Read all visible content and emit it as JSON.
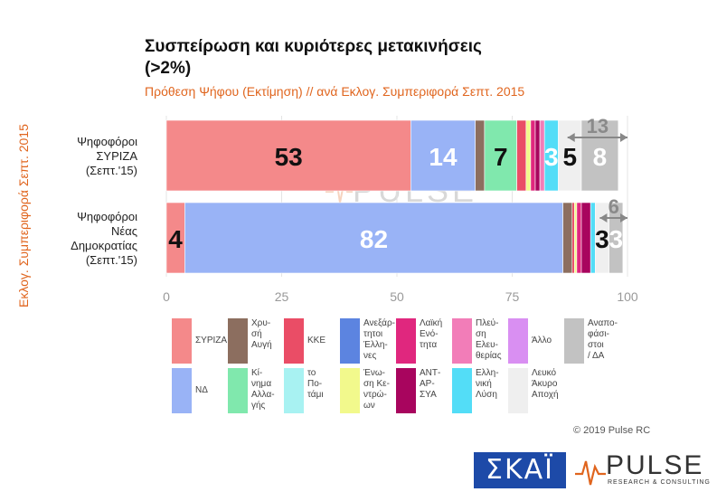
{
  "title": "Συσπείρωση και κυριότερες μετακινήσεις (>2%)",
  "subtitle": "Πρόθεση Ψήφου (Εκτίμηση) // ανά Εκλογ. Συμπεριφορά Σεπτ. 2015",
  "side_label": "Εκλογ. Συμπεριφορά Σεπτ. 2015",
  "copyright": "© 2019 Pulse RC",
  "logos": {
    "skai": "ΣΚΑΪ",
    "pulse": "PULSE",
    "pulse_sub": "RESEARCH & CONSULTING"
  },
  "colors": {
    "ΣΥΡΙΖΑ": "#f4898a",
    "ΝΔ": "#99b3f6",
    "Χρυσή Αυγή": "#8c6e5f",
    "Κίνημα Αλλαγής": "#80e8ad",
    "ΚΚΕ": "#ea4d66",
    "το Ποτάμι": "#a8f2f2",
    "Ανεξάρτητοι Έλληνες": "#5c84e0",
    "Ένωση Κεντρώων": "#f2f98c",
    "Λαϊκή Ενότητα": "#e0277e",
    "ΑΝΤΑΡΣΥΑ": "#a8055e",
    "Πλεύση Ελευθερίας": "#f27db8",
    "Ελληνική Λύση": "#53ddf7",
    "Άλλο": "#d98ff2",
    "Λευκό Άκυρο Αποχή": "#efefef",
    "Αναποφάσιστοι / ΔΑ": "#c2c2c2"
  },
  "chart_data": {
    "type": "bar",
    "orientation": "horizontal",
    "stacked": true,
    "categories": [
      [
        "Ψηφοφόροι",
        "ΣΥΡΙΖΑ",
        "(Σεπτ.'15)"
      ],
      [
        "Ψηφοφόροι",
        "Νέας",
        "Δημοκρατίας",
        "(Σεπτ.'15)"
      ]
    ],
    "xlim": [
      0,
      100
    ],
    "xticks": [
      0,
      25,
      50,
      75,
      100
    ],
    "series": [
      {
        "name": "ΣΥΡΙΖΑ",
        "values": [
          53,
          4
        ]
      },
      {
        "name": "ΝΔ",
        "values": [
          14,
          82
        ]
      },
      {
        "name": "Χρυσή Αυγή",
        "values": [
          2,
          2
        ]
      },
      {
        "name": "Κίνημα Αλλαγής",
        "values": [
          7,
          0
        ]
      },
      {
        "name": "ΚΚΕ",
        "values": [
          2,
          0.5
        ]
      },
      {
        "name": "Ένωση Κεντρώων",
        "values": [
          1,
          0.5
        ]
      },
      {
        "name": "Λαϊκή Ενότητα",
        "values": [
          1,
          1
        ]
      },
      {
        "name": "ΑΝΤΑΡΣΥΑ",
        "values": [
          1,
          2
        ]
      },
      {
        "name": "Πλεύση Ελευθερίας",
        "values": [
          1,
          0
        ]
      },
      {
        "name": "Ελληνική Λύση",
        "values": [
          3,
          1
        ]
      },
      {
        "name": "Λευκό Άκυρο Αποχή",
        "values": [
          5,
          3
        ]
      },
      {
        "name": "Αναποφάσιστοι / ΔΑ",
        "values": [
          8,
          3
        ]
      }
    ],
    "data_labels": [
      [
        {
          "series": "ΣΥΡΙΖΑ",
          "text": "53",
          "color": "#111111"
        },
        {
          "series": "ΝΔ",
          "text": "14",
          "color": "#ffffff"
        },
        {
          "series": "Κίνημα Αλλαγής",
          "text": "7",
          "color": "#111111"
        },
        {
          "series": "Ελληνική Λύση",
          "text": "3",
          "color": "#ffffff"
        },
        {
          "series": "Λευκό Άκυρο Αποχή",
          "text": "5",
          "color": "#111111"
        },
        {
          "series": "Αναποφάσιστοι / ΔΑ",
          "text": "8",
          "color": "#ffffff"
        }
      ],
      [
        {
          "series": "ΣΥΡΙΖΑ",
          "text": "4",
          "color": "#111111"
        },
        {
          "series": "ΝΔ",
          "text": "82",
          "color": "#ffffff"
        },
        {
          "series": "Λευκό Άκυρο Αποχή",
          "text": "3",
          "color": "#111111"
        },
        {
          "series": "Αναποφάσιστοι / ΔΑ",
          "text": "3",
          "color": "#ffffff"
        }
      ]
    ],
    "brackets": [
      {
        "bar": 0,
        "from": 87,
        "to": 100,
        "text": "13"
      },
      {
        "bar": 1,
        "from": 94,
        "to": 100,
        "text": "6"
      }
    ],
    "legend": [
      {
        "name": "ΣΥΡΙΖΑ",
        "label": "ΣΥΡΙΖΑ"
      },
      {
        "name": "ΝΔ",
        "label": "ΝΔ"
      },
      {
        "name": "Χρυσή Αυγή",
        "label": "Χρυ-\nσή\nΑυγή"
      },
      {
        "name": "Κίνημα Αλλαγής",
        "label": "Κί-\nνημα\nΑλλα-\nγής"
      },
      {
        "name": "ΚΚΕ",
        "label": "ΚΚΕ"
      },
      {
        "name": "το Ποτάμι",
        "label": "το\nΠο-\nτάμι"
      },
      {
        "name": "Ανεξάρτητοι Έλληνες",
        "label": "Ανεξάρ-\nτητοι\nΈλλη-\nνες"
      },
      {
        "name": "Ένωση Κεντρώων",
        "label": "Ένω-\nση Κε-\nντρώ-\nων"
      },
      {
        "name": "Λαϊκή Ενότητα",
        "label": "Λαϊκή\nΕνό-\nτητα"
      },
      {
        "name": "ΑΝΤΑΡΣΥΑ",
        "label": "ΑΝΤ-\nΑΡ-\nΣΥΑ"
      },
      {
        "name": "Πλεύση Ελευθερίας",
        "label": "Πλεύ-\nση\nΕλευ-\nθερίας"
      },
      {
        "name": "Ελληνική Λύση",
        "label": "Ελλη-\nνική\nΛύση"
      },
      {
        "name": "Άλλο",
        "label": "Άλλο"
      },
      {
        "name": "Λευκό Άκυρο Αποχή",
        "label": "Λευκό\nΆκυρο\nΑποχή"
      },
      {
        "name": "Αναποφάσιστοι / ΔΑ",
        "label": "Αναπο-\nφάσι-\nστοι\n/ ΔΑ"
      }
    ]
  }
}
